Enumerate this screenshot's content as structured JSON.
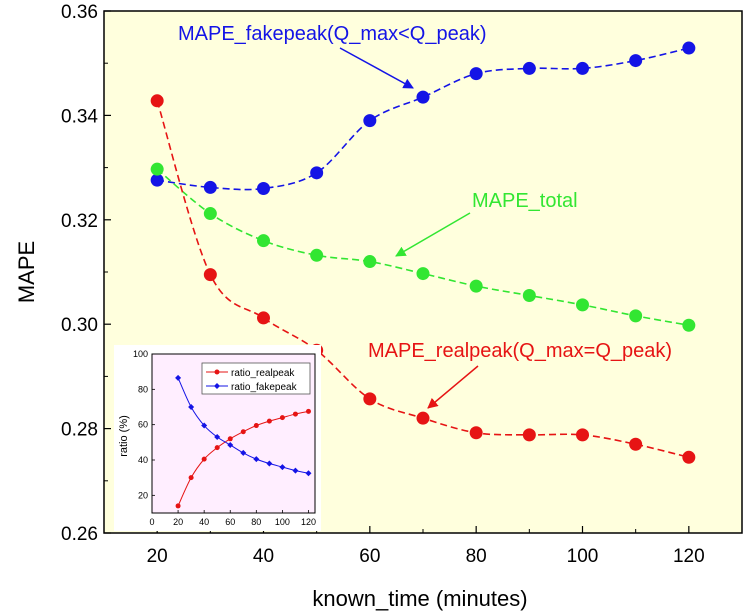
{
  "chart_data": [
    {
      "type": "line",
      "xlabel": "known_time (minutes)",
      "ylabel": "MAPE",
      "xlim": [
        10,
        130
      ],
      "ylim": [
        0.26,
        0.36
      ],
      "xticks": [
        20,
        40,
        60,
        80,
        100,
        120
      ],
      "yticks": [
        0.26,
        0.28,
        0.3,
        0.32,
        0.34,
        0.36
      ],
      "ytick_labels": [
        "0.26",
        "0.28",
        "0.30",
        "0.32",
        "0.34",
        "0.36"
      ],
      "background": "#ffffdd",
      "grid": false,
      "x": [
        20,
        30,
        40,
        50,
        60,
        70,
        80,
        90,
        100,
        110,
        120
      ],
      "series": [
        {
          "key": "fakepeak",
          "color": "#1414e6",
          "values": [
            0.3276,
            0.3262,
            0.326,
            0.329,
            0.339,
            0.3435,
            0.348,
            0.349,
            0.349,
            0.3505,
            0.3529
          ]
        },
        {
          "key": "total",
          "color": "#32e632",
          "values": [
            0.3297,
            0.3212,
            0.316,
            0.3132,
            0.312,
            0.3097,
            0.3073,
            0.3055,
            0.3037,
            0.3016,
            0.2998
          ]
        },
        {
          "key": "realpeak",
          "color": "#e61414",
          "values": [
            0.3428,
            0.3095,
            0.3012,
            0.295,
            0.2857,
            0.282,
            0.2792,
            0.2788,
            0.2788,
            0.277,
            0.2745
          ]
        }
      ],
      "annotations": [
        {
          "series": "fakepeak",
          "text": "MAPE_fakepeak(Q_max<Q_peak)",
          "color": "#1414e6"
        },
        {
          "series": "total",
          "text": "MAPE_total",
          "color": "#32e632"
        },
        {
          "series": "realpeak",
          "text": "MAPE_realpeak(Q_max=Q_peak)",
          "color": "#e61414"
        }
      ]
    },
    {
      "type": "line",
      "ylabel": "ratio (%)",
      "xlabel": "",
      "xlim": [
        0,
        125
      ],
      "ylim": [
        10,
        100
      ],
      "xticks": [
        0,
        20,
        40,
        60,
        80,
        100,
        120
      ],
      "yticks": [
        20,
        40,
        60,
        80,
        100
      ],
      "background": "#ffeeff",
      "legend": "top-right",
      "x": [
        20,
        30,
        40,
        50,
        60,
        70,
        80,
        90,
        100,
        110,
        120
      ],
      "series": [
        {
          "name": "ratio_realpeak",
          "color": "#e61414",
          "values": [
            14,
            30,
            40.5,
            47,
            52,
            56,
            59.5,
            62,
            64,
            66,
            67.5
          ]
        },
        {
          "name": "ratio_fakepeak",
          "color": "#1414e6",
          "values": [
            86.5,
            70,
            59.5,
            53,
            48.5,
            44,
            40.5,
            38,
            36,
            34,
            32.5
          ]
        }
      ]
    }
  ]
}
